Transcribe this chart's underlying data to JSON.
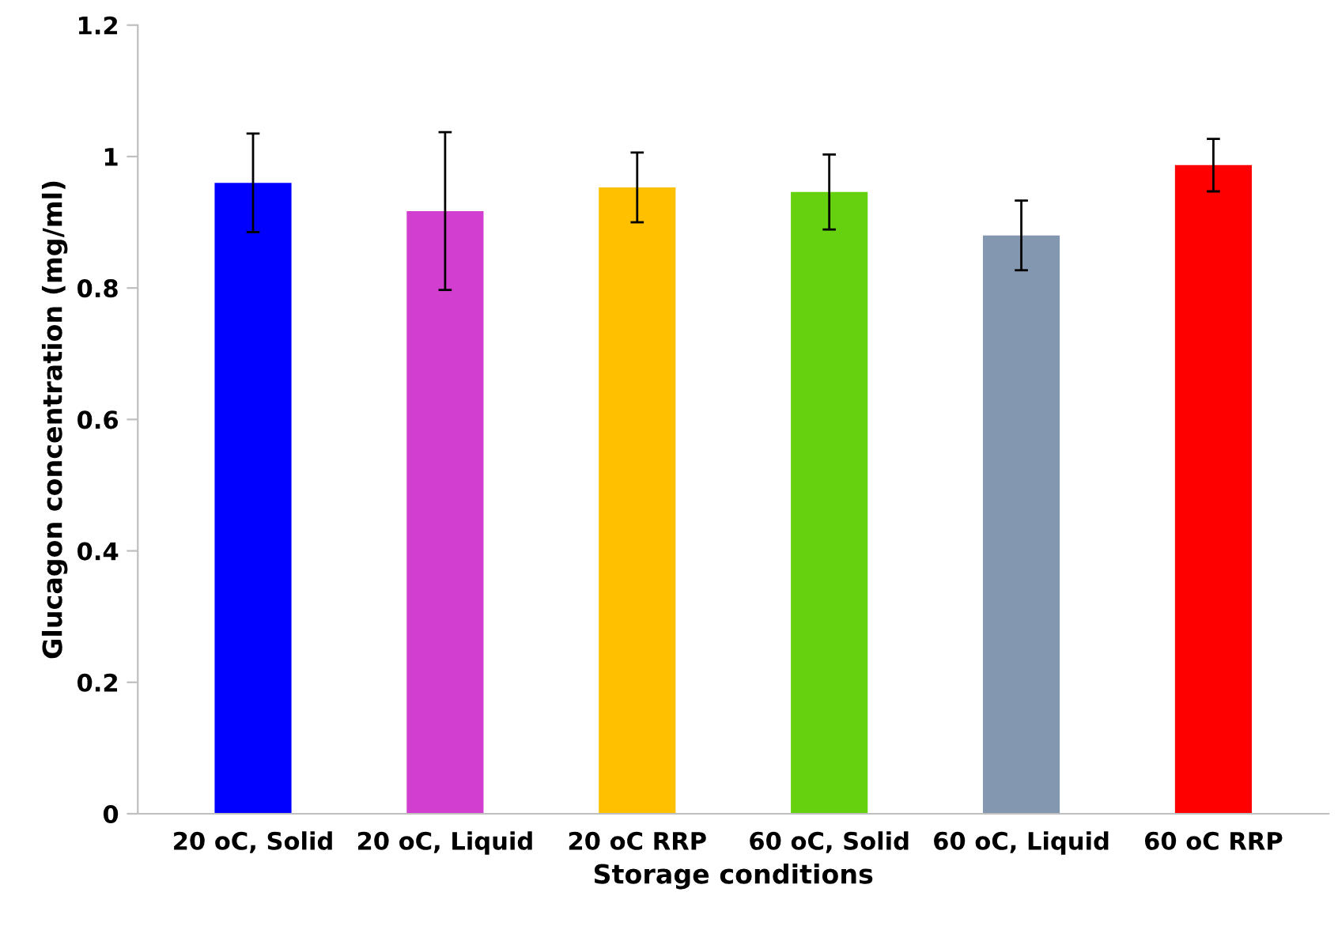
{
  "chart_data": {
    "type": "bar",
    "xlabel": "Storage conditions",
    "ylabel": "Glucagon concentration (mg/ml)",
    "categories": [
      "20 oC, Solid",
      "20 oC, Liquid",
      "20 oC RRP",
      "60 oC, Solid",
      "60 oC, Liquid",
      "60 oC RRP"
    ],
    "values": [
      0.96,
      0.917,
      0.953,
      0.946,
      0.88,
      0.987
    ],
    "errors": [
      0.075,
      0.12,
      0.053,
      0.057,
      0.053,
      0.04
    ],
    "colors": [
      "#0000ff",
      "#d23ecf",
      "#ffc000",
      "#66d10f",
      "#8497b0",
      "#ff0000"
    ],
    "ylim": [
      0,
      1.2
    ],
    "yticks": [
      0,
      {
        "value": 0.2,
        "label": "0.2"
      },
      {
        "value": 0.4,
        "label": "0.4"
      },
      {
        "value": 0.6,
        "label": "0.6"
      },
      {
        "value": 0.8,
        "label": "0.8"
      },
      1,
      {
        "value": 1.2,
        "label": "1.2"
      }
    ],
    "grid": false,
    "legend": false
  }
}
